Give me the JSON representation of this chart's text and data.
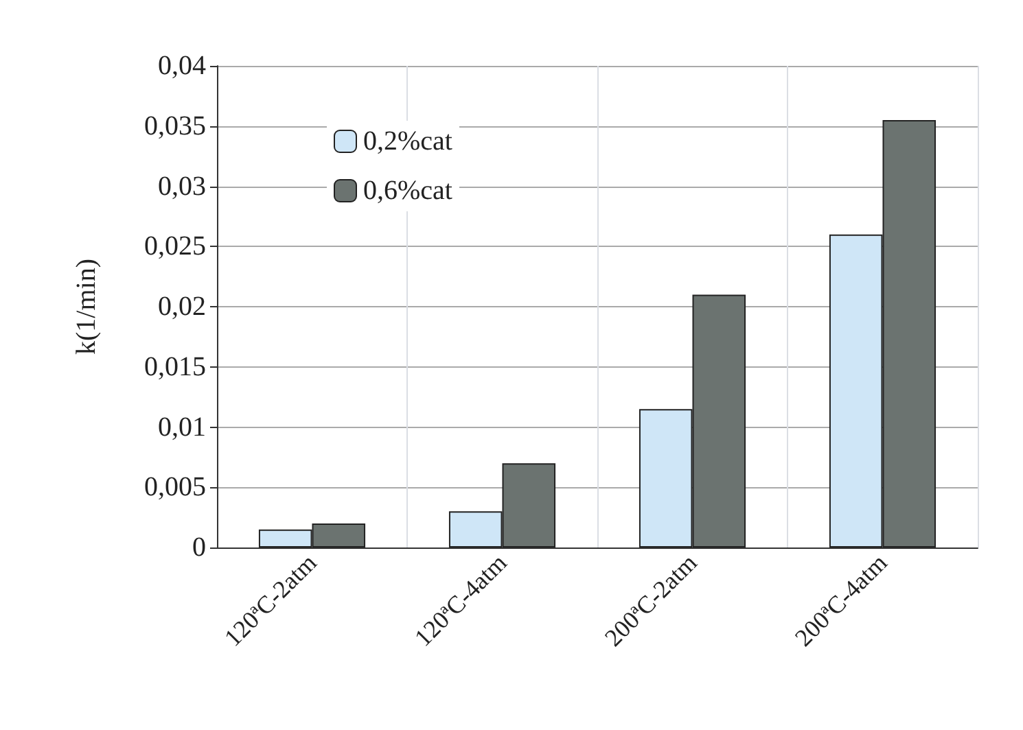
{
  "chart_data": {
    "type": "bar",
    "ylabel": "k(1/min)",
    "categories": [
      "120ªC-2atm",
      "120ªC-4atm",
      "200ªC-2atm",
      "200ªC-4atm"
    ],
    "series": [
      {
        "name": "0,2%cat",
        "color": "#cfe6f7",
        "values": [
          0.0015,
          0.003,
          0.0115,
          0.026
        ]
      },
      {
        "name": "0,6%cat",
        "color": "#6b7370",
        "values": [
          0.002,
          0.007,
          0.021,
          0.0355
        ]
      }
    ],
    "ylim": [
      0,
      0.04
    ],
    "yticks": [
      {
        "value": 0,
        "label": "0"
      },
      {
        "value": 0.005,
        "label": "0,005"
      },
      {
        "value": 0.01,
        "label": "0,01"
      },
      {
        "value": 0.015,
        "label": "0,015"
      },
      {
        "value": 0.02,
        "label": "0,02"
      },
      {
        "value": 0.025,
        "label": "0,025"
      },
      {
        "value": 0.03,
        "label": "0,03"
      },
      {
        "value": 0.035,
        "label": "0,035"
      },
      {
        "value": 0.04,
        "label": "0,04"
      }
    ],
    "grid": true,
    "legend": "top left"
  }
}
